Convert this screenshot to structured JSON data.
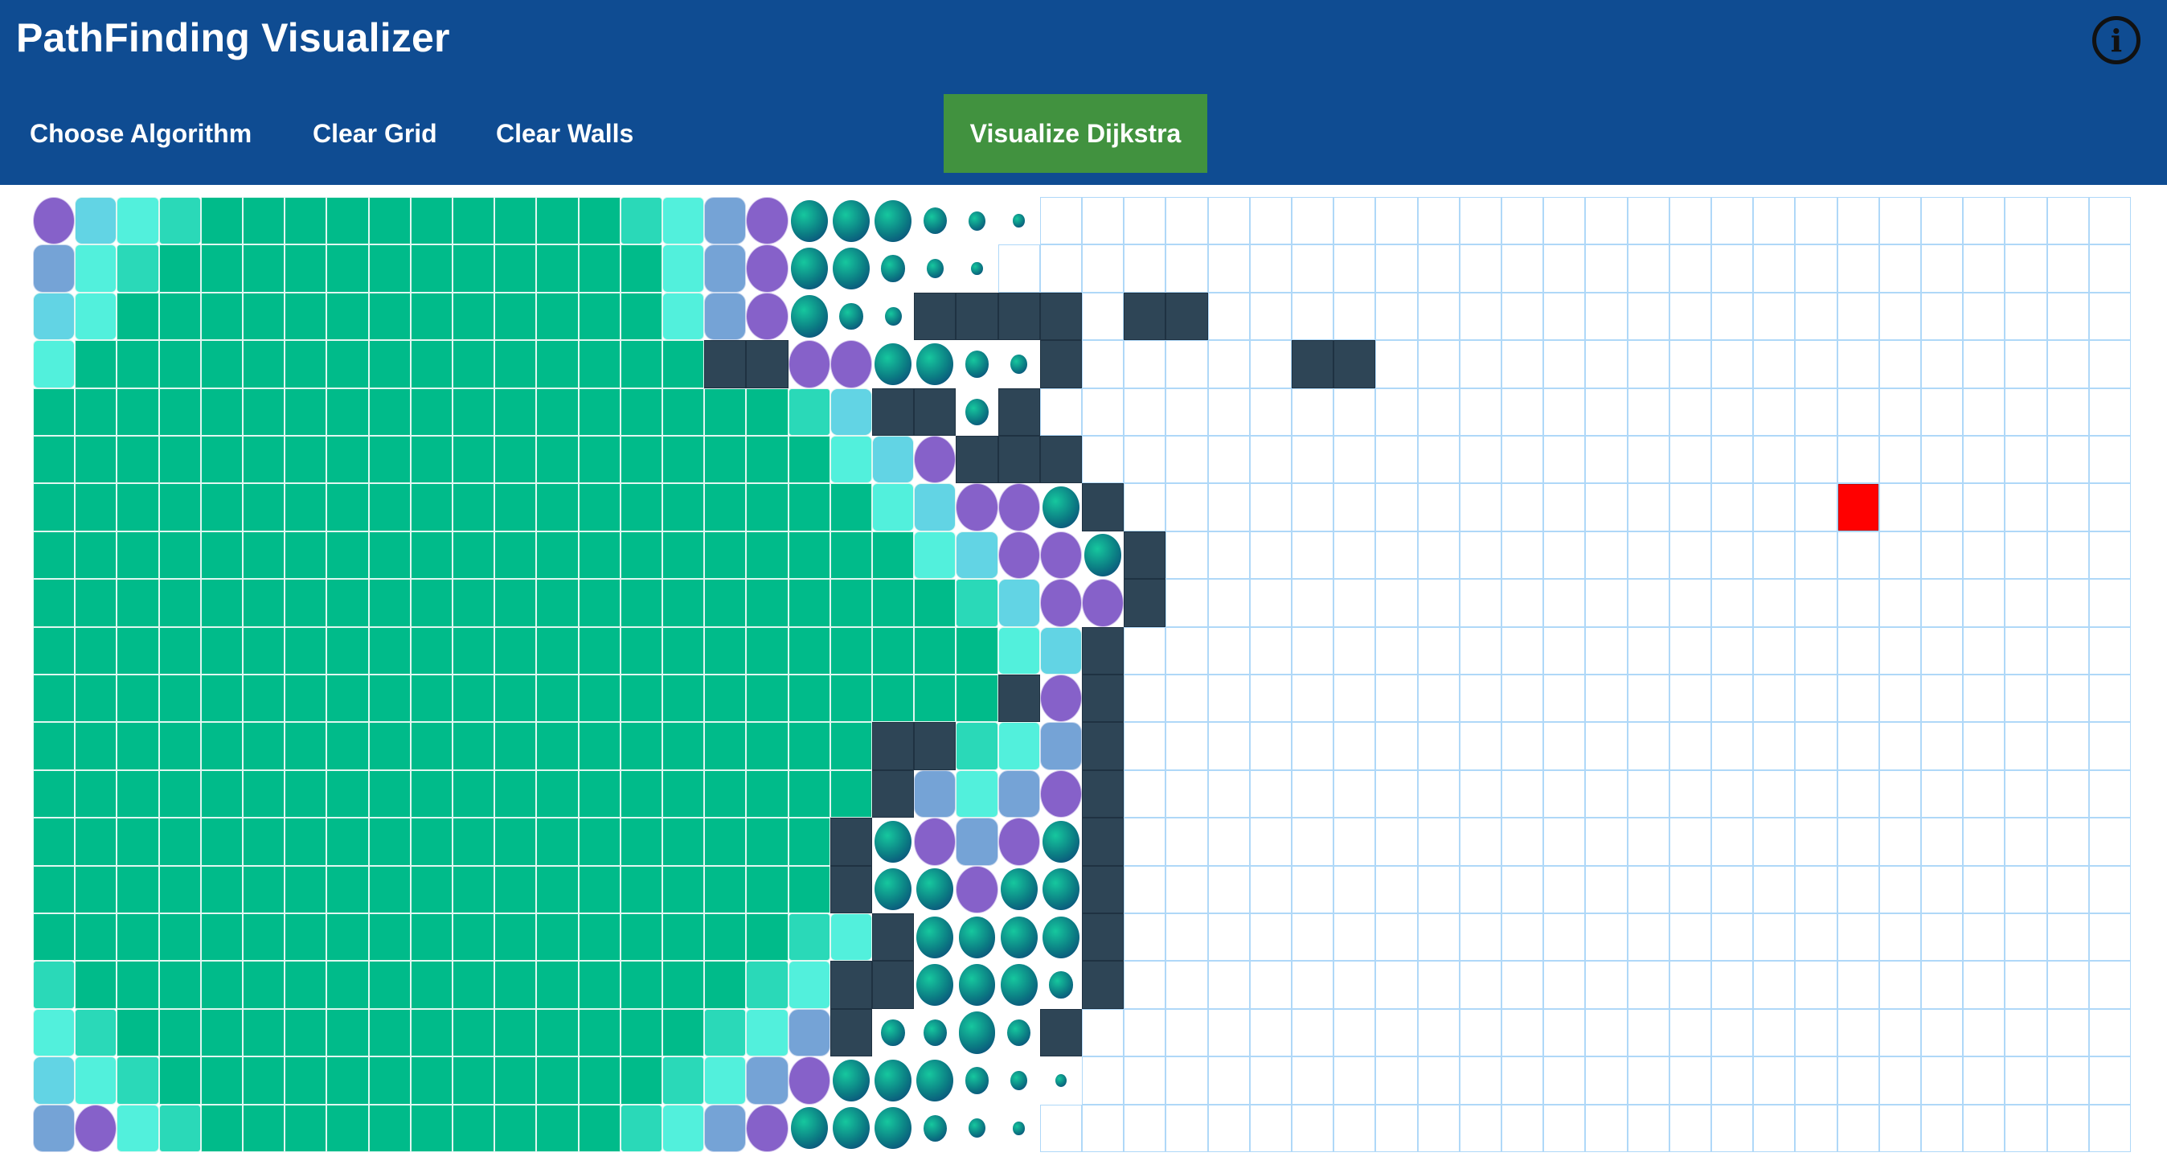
{
  "navbar": {
    "title": "PathFinding Visualizer",
    "menu": [
      "Choose Algorithm",
      "Clear Grid",
      "Clear Walls"
    ],
    "visualize_label": "Visualize Dijkstra",
    "info_symbol": "i",
    "info_icon": "info-circle-icon"
  },
  "colors": {
    "navbar": "#0f4c92",
    "visualize_button": "#41923f",
    "visited": "#00bb8a",
    "wall": "#2e4556",
    "target": "#ff0000",
    "unvisited_border": "#afd8f8"
  },
  "grid": {
    "rows": 20,
    "cols": 50,
    "legend": {
      ".": "unvisited",
      "V": "visited",
      "1": "visiting-step-1",
      "2": "visiting-step-2",
      "3": "visiting-step-3",
      "4": "visiting-step-4",
      "5": "visiting-step-5",
      "6": "visiting-step-6",
      "7": "visiting-step-7",
      "8": "visiting-step-8",
      "9": "visiting-step-9",
      "W": "wall",
      "T": "target"
    },
    "map": [
      "5321VVVVVVVVVV1245666789..........................",
      "421VVVVVVVVVVVV24566789...........................",
      "32VVVVVVVVVVVVV245678WWWW.WW......................",
      "2VVVVVVVVVVVVVVVWW556678W.....WW..................",
      "VVVVVVVVVVVVVVVVVV13WW7W..........................",
      "VVVVVVVVVVVVVVVVVVV235WWW.........................",
      "VVVVVVVVVVVVVVVVVVVV23556W.................T......",
      "VVVVVVVVVVVVVVVVVVVVV23556W.......................",
      "VVVVVVVVVVVVVVVVVVVVVV1355W.......................",
      "VVVVVVVVVVVVVVVVVVVVVVV23W........................",
      "VVVVVVVVVVVVVVVVVVVVVVVW5W........................",
      "VVVVVVVVVVVVVVVVVVVVWW124W........................",
      "VVVVVVVVVVVVVVVVVVVVW4245W........................",
      "VVVVVVVVVVVVVVVVVVVW65456W........................",
      "VVVVVVVVVVVVVVVVVVVW66566W........................",
      "VVVVVVVVVVVVVVVVVV12W6666W........................",
      "1VVVVVVVVVVVVVVVV12WW6667W........................",
      "21VVVVVVVVVVVVVV124W7767W.........................",
      "321VVVVVVVVVVVV1245666789.........................",
      "4521VVVVVVVVVV1245666789.........................."
    ]
  }
}
